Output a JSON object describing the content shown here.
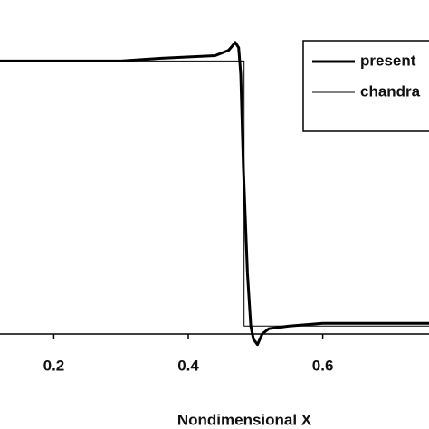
{
  "chart_data": {
    "type": "line",
    "xlabel": "Nondimensional X",
    "xlim": [
      0.12,
      0.758
    ],
    "ylim": [
      -0.03,
      1.23
    ],
    "xticks": [
      0.2,
      0.4,
      0.6
    ],
    "legend": "upper right",
    "series": [
      {
        "name": "present",
        "color": "#000000",
        "width": 3,
        "x": [
          0.12,
          0.3,
          0.36,
          0.44,
          0.46,
          0.47,
          0.475,
          0.478,
          0.482,
          0.488,
          0.493,
          0.497,
          0.503,
          0.51,
          0.52,
          0.55,
          0.6,
          0.758
        ],
        "values": [
          1,
          1,
          1.01,
          1.02,
          1.04,
          1.07,
          1.05,
          0.95,
          0.6,
          0.2,
          0,
          -0.05,
          -0.07,
          -0.03,
          -0.01,
          0,
          0.01,
          0.01
        ]
      },
      {
        "name": "chandra",
        "color": "#000000",
        "width": 1,
        "x": [
          0.12,
          0.483,
          0.483,
          0.758
        ],
        "values": [
          1,
          1,
          0,
          0
        ]
      }
    ]
  }
}
